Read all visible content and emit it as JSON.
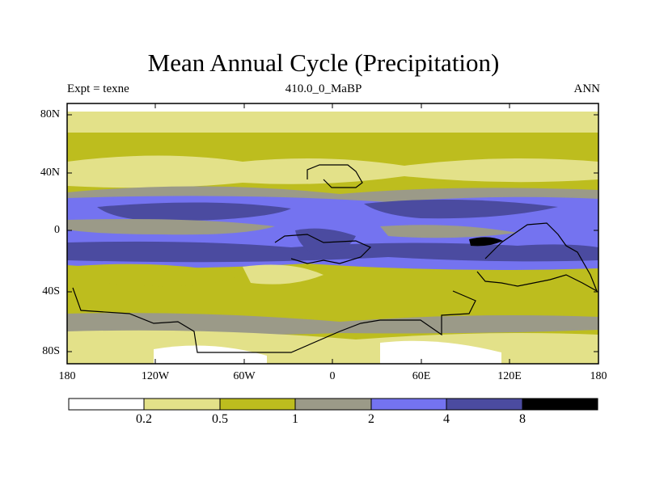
{
  "title": "Mean Annual Cycle (Precipitation)",
  "subtitle_left": "Expt = texne",
  "subtitle_center": "410.0_0_MaBP",
  "subtitle_right": "ANN",
  "lat_labels": [
    "80N",
    "40N",
    "0",
    "40S",
    "80S"
  ],
  "lon_labels": [
    "180",
    "120W",
    "60W",
    "0",
    "60E",
    "120E",
    "180"
  ],
  "colorbar": {
    "thresholds": [
      "0.2",
      "0.5",
      "1",
      "2",
      "4",
      "8"
    ],
    "colors": [
      "#ffffff",
      "#e3e189",
      "#bdbd1e",
      "#9b9a88",
      "#7473f0",
      "#4b4ba0",
      "#000000"
    ]
  }
}
